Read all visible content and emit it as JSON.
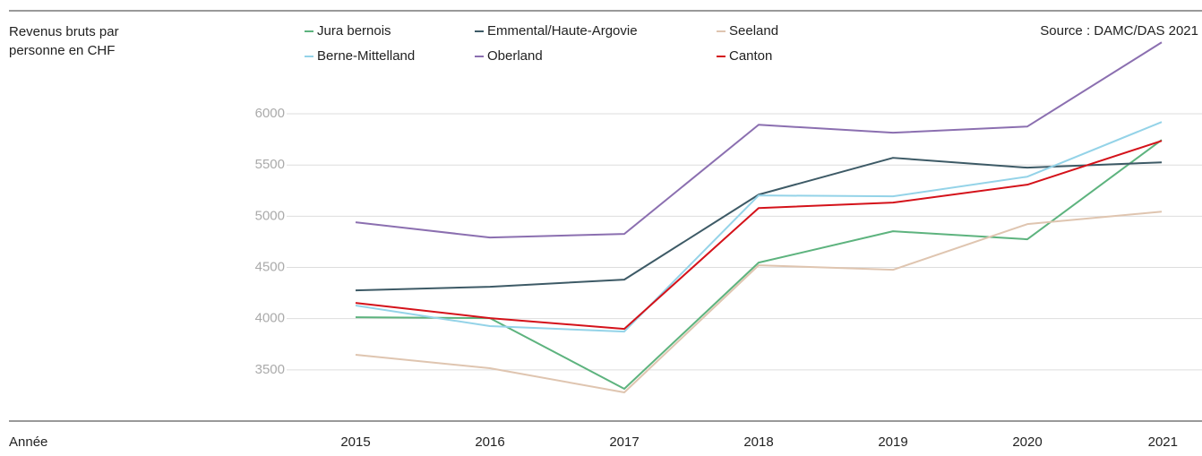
{
  "chart_data": {
    "type": "line",
    "y_label": "Revenus bruts par personne en CHF",
    "x_label": "Année",
    "source": "Source : DAMC/DAS 2021",
    "categories": [
      "2015",
      "2016",
      "2017",
      "2018",
      "2019",
      "2020",
      "2021"
    ],
    "series": [
      {
        "name": "Jura bernois",
        "color": "#5db37e",
        "values": [
          4014,
          4005,
          3315,
          4547,
          4853,
          4775,
          5745
        ]
      },
      {
        "name": "Emmental/Haute-Argovie",
        "color": "#3d5a66",
        "values": [
          4276,
          4311,
          4381,
          5211,
          5570,
          5474,
          5526
        ]
      },
      {
        "name": "Seeland",
        "color": "#dfc5b0",
        "values": [
          3647,
          3516,
          3280,
          4521,
          4477,
          4923,
          5045
        ]
      },
      {
        "name": "Berne-Mittelland",
        "color": "#94d3e8",
        "values": [
          4128,
          3927,
          3874,
          5203,
          5194,
          5386,
          5920
        ]
      },
      {
        "name": "Oberland",
        "color": "#8b6fb0",
        "values": [
          4941,
          4792,
          4827,
          5893,
          5815,
          5876,
          6698
        ]
      },
      {
        "name": "Canton",
        "color": "#d4121a",
        "values": [
          4154,
          4005,
          3900,
          5080,
          5133,
          5308,
          5736
        ]
      }
    ],
    "ylim": [
      3000,
      6700
    ],
    "yticks": [
      3500,
      4000,
      4500,
      5000,
      5500,
      6000
    ],
    "grid": true
  }
}
